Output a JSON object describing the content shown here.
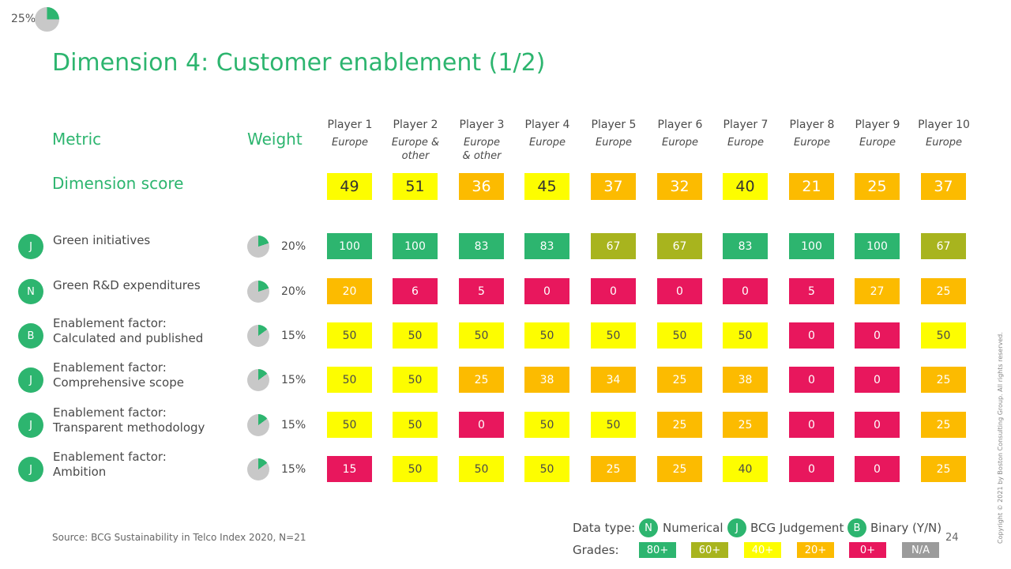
{
  "progress": {
    "label": "25%",
    "fraction": 0.25
  },
  "title": "Dimension 4: Customer enablement (1/2)",
  "headers": {
    "metric": "Metric",
    "weight": "Weight",
    "dimension_score": "Dimension score"
  },
  "players": [
    {
      "name": "Player 1",
      "region": "Europe"
    },
    {
      "name": "Player 2",
      "region": "Europe &\nother"
    },
    {
      "name": "Player 3",
      "region": "Europe\n& other"
    },
    {
      "name": "Player 4",
      "region": "Europe"
    },
    {
      "name": "Player 5",
      "region": "Europe"
    },
    {
      "name": "Player 6",
      "region": "Europe"
    },
    {
      "name": "Player 7",
      "region": "Europe"
    },
    {
      "name": "Player 8",
      "region": "Europe"
    },
    {
      "name": "Player 9",
      "region": "Europe"
    },
    {
      "name": "Player 10",
      "region": "Europe"
    }
  ],
  "dimension_scores": [
    "49",
    "51",
    "36",
    "45",
    "37",
    "32",
    "40",
    "21",
    "25",
    "37"
  ],
  "metrics": [
    {
      "type": "J",
      "label": "Green initiatives",
      "weight": "20%",
      "weight_fraction": 0.2,
      "values": [
        "100",
        "100",
        "83",
        "83",
        "67",
        "67",
        "83",
        "100",
        "100",
        "67"
      ]
    },
    {
      "type": "N",
      "label": "Green R&D expenditures",
      "weight": "20%",
      "weight_fraction": 0.2,
      "values": [
        "20",
        "6",
        "5",
        "0",
        "0",
        "0",
        "0",
        "5",
        "27",
        "25"
      ]
    },
    {
      "type": "B",
      "label": "Enablement factor:\nCalculated and published",
      "weight": "15%",
      "weight_fraction": 0.15,
      "values": [
        "50",
        "50",
        "50",
        "50",
        "50",
        "50",
        "50",
        "0",
        "0",
        "50"
      ]
    },
    {
      "type": "J",
      "label": "Enablement factor:\nComprehensive scope",
      "weight": "15%",
      "weight_fraction": 0.15,
      "values": [
        "50",
        "50",
        "25",
        "38",
        "34",
        "25",
        "38",
        "0",
        "0",
        "25"
      ]
    },
    {
      "type": "J",
      "label": "Enablement factor:\nTransparent methodology",
      "weight": "15%",
      "weight_fraction": 0.15,
      "values": [
        "50",
        "50",
        "0",
        "50",
        "50",
        "25",
        "25",
        "0",
        "0",
        "25"
      ]
    },
    {
      "type": "J",
      "label": "Enablement factor:\nAmbition",
      "weight": "15%",
      "weight_fraction": 0.15,
      "values": [
        "15",
        "50",
        "50",
        "50",
        "25",
        "25",
        "40",
        "0",
        "0",
        "25"
      ]
    }
  ],
  "source": "Source: BCG Sustainability in Telco Index 2020, N=21",
  "legend": {
    "data_type_label": "Data type:",
    "types": [
      {
        "badge": "N",
        "label": "Numerical"
      },
      {
        "badge": "J",
        "label": "BCG Judgement"
      },
      {
        "badge": "B",
        "label": "Binary (Y/N)"
      }
    ],
    "grades_label": "Grades:",
    "grades": [
      {
        "label": "80+",
        "color": "#2db56f"
      },
      {
        "label": "60+",
        "color": "#a8b41e"
      },
      {
        "label": "40+",
        "color": "#fdfd00"
      },
      {
        "label": "20+",
        "color": "#fcbb00"
      },
      {
        "label": "0+",
        "color": "#e8175d"
      },
      {
        "label": "N/A",
        "color": "#9b9b9b"
      }
    ]
  },
  "page_number": "24",
  "copyright": "Copyright © 2021 by Boston Consulting Group. All rights reserved.",
  "colors": {
    "accent": "#2db56f",
    "grade_80": "#2db56f",
    "grade_60": "#a8b41e",
    "grade_40": "#fdfd00",
    "grade_20": "#fcbb00",
    "grade_0": "#e8175d",
    "na": "#9b9b9b",
    "pie_bg": "#c8c8c8"
  }
}
